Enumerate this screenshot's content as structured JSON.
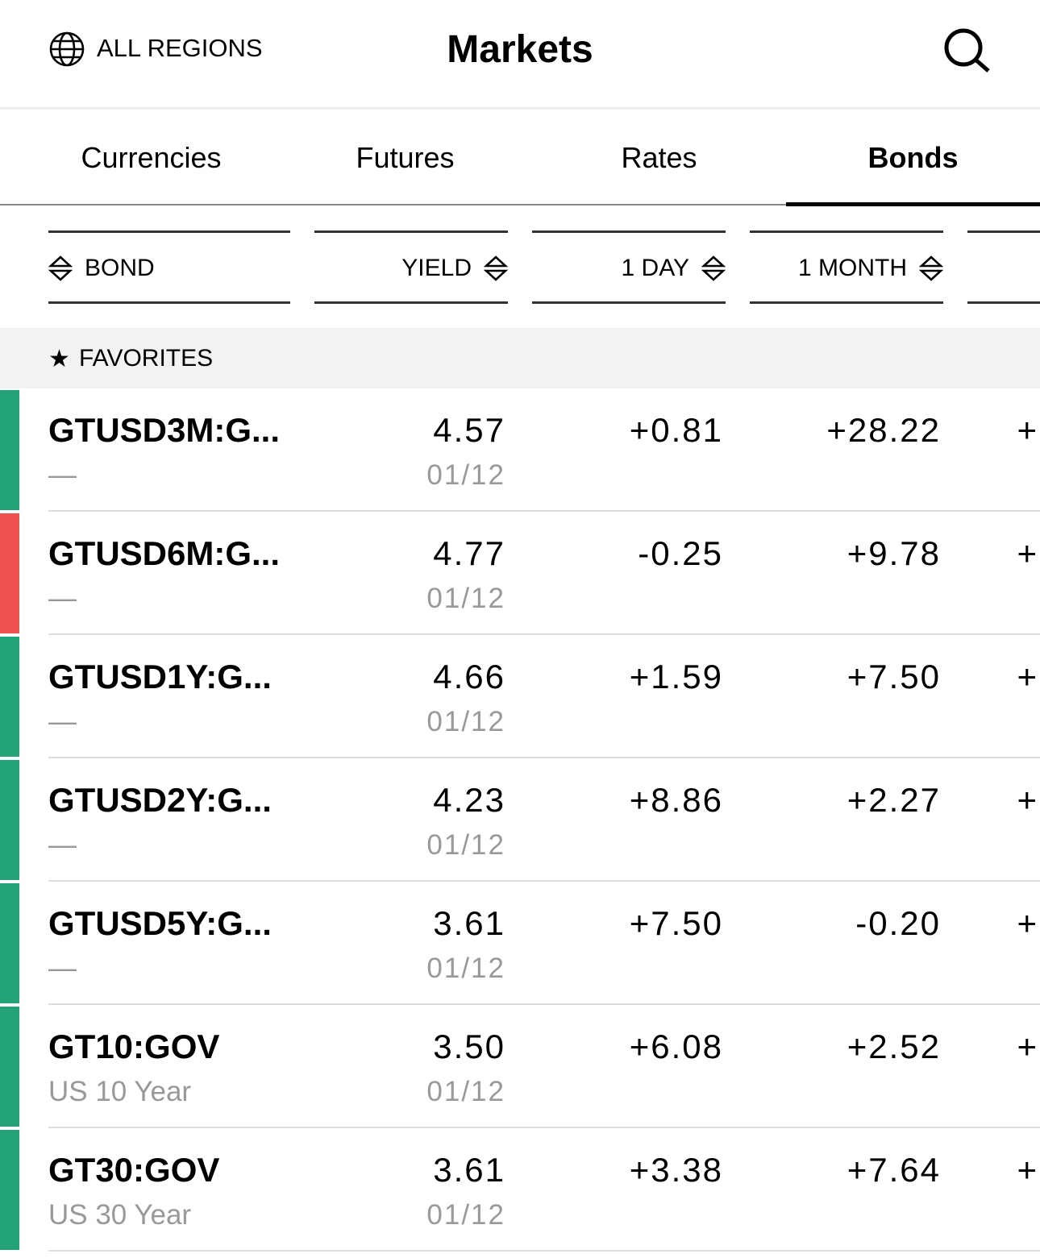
{
  "header": {
    "region": "ALL REGIONS",
    "title": "Markets"
  },
  "tabs": {
    "items": [
      "Currencies",
      "Futures",
      "Rates",
      "Bonds"
    ],
    "active": 3
  },
  "columns": [
    "BOND",
    "YIELD",
    "1 DAY",
    "1 MONTH"
  ],
  "section": {
    "title": "FAVORITES"
  },
  "rows": [
    {
      "name": "GTUSD3M:G...",
      "desc": "—",
      "yield": "4.57",
      "date": "01/12",
      "day": "+0.81",
      "month": "+28.22",
      "next": "+",
      "color": "#24a37a"
    },
    {
      "name": "GTUSD6M:G...",
      "desc": "—",
      "yield": "4.77",
      "date": "01/12",
      "day": "-0.25",
      "month": "+9.78",
      "next": "+",
      "color": "#f0524f"
    },
    {
      "name": "GTUSD1Y:G...",
      "desc": "—",
      "yield": "4.66",
      "date": "01/12",
      "day": "+1.59",
      "month": "+7.50",
      "next": "+",
      "color": "#24a37a"
    },
    {
      "name": "GTUSD2Y:G...",
      "desc": "—",
      "yield": "4.23",
      "date": "01/12",
      "day": "+8.86",
      "month": "+2.27",
      "next": "+",
      "color": "#24a37a"
    },
    {
      "name": "GTUSD5Y:G...",
      "desc": "—",
      "yield": "3.61",
      "date": "01/12",
      "day": "+7.50",
      "month": "-0.20",
      "next": "+",
      "color": "#24a37a"
    },
    {
      "name": "GT10:GOV",
      "desc": "US 10 Year",
      "yield": "3.50",
      "date": "01/12",
      "day": "+6.08",
      "month": "+2.52",
      "next": "+",
      "color": "#24a37a"
    },
    {
      "name": "GT30:GOV",
      "desc": "US 30 Year",
      "yield": "3.61",
      "date": "01/12",
      "day": "+3.38",
      "month": "+7.64",
      "next": "+",
      "color": "#24a37a"
    }
  ]
}
